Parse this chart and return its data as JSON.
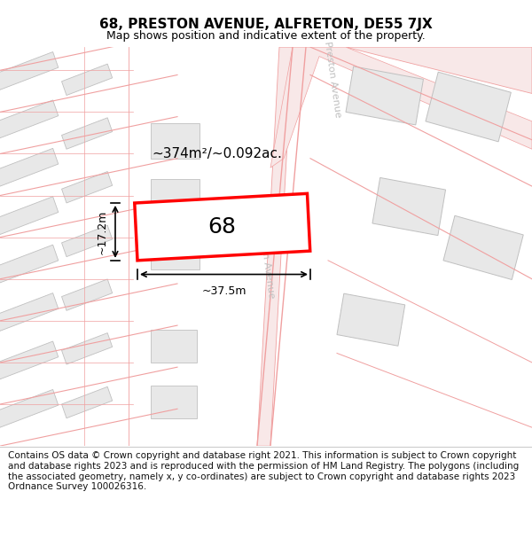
{
  "title": "68, PRESTON AVENUE, ALFRETON, DE55 7JX",
  "subtitle": "Map shows position and indicative extent of the property.",
  "footer": "Contains OS data © Crown copyright and database right 2021. This information is subject to Crown copyright and database rights 2023 and is reproduced with the permission of HM Land Registry. The polygons (including the associated geometry, namely x, y co-ordinates) are subject to Crown copyright and database rights 2023 Ordnance Survey 100026316.",
  "bg_color": "#ffffff",
  "map_bg": "#ffffff",
  "building_fill": "#e8e8e8",
  "building_edge": "#c0c0c0",
  "road_line_color": "#f0a0a0",
  "road_fill": "#f8e8e8",
  "highlight_color": "#ff0000",
  "highlight_fill": "#ffffff",
  "area_label": "~374m²/~0.092ac.",
  "width_label": "~37.5m",
  "height_label": "~17.2m",
  "number_label": "68",
  "street_label": "Preston Avenue",
  "title_fontsize": 11,
  "subtitle_fontsize": 9,
  "footer_fontsize": 7.5,
  "annotation_color": "#111111",
  "street_color": "#c0c0c0"
}
